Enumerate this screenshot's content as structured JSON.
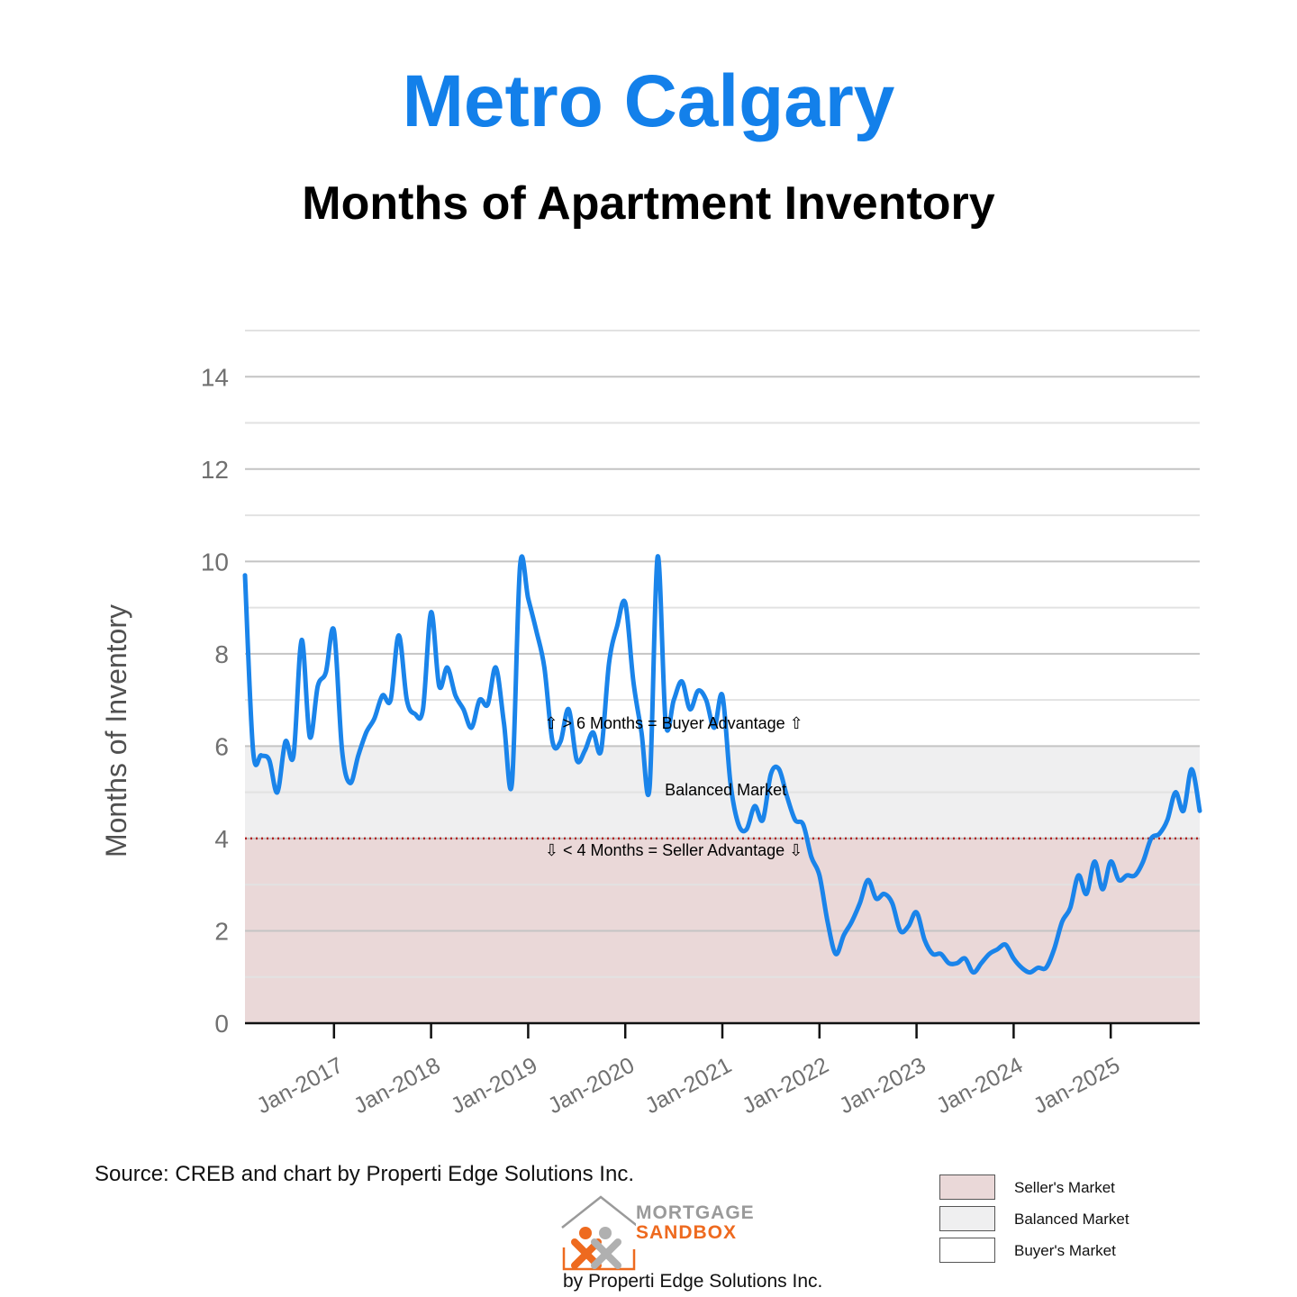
{
  "header": {
    "title": "Metro Calgary",
    "subtitle": "Months of Apartment Inventory"
  },
  "footer": {
    "source": "Source: CREB and chart by Properti Edge Solutions Inc.",
    "logo_line1": "MORTGAGE",
    "logo_line2": "SANDBOX",
    "logo_by": "by Properti Edge Solutions Inc."
  },
  "legend": [
    {
      "label": "Seller's Market",
      "color": "#ead8d8"
    },
    {
      "label": "Balanced Market",
      "color": "#efeff0"
    },
    {
      "label": "Buyer's Market",
      "color": "#ffffff"
    }
  ],
  "colors": {
    "line": "#1a84ea",
    "title": "#1380ea",
    "seller_zone": "#ead8d8",
    "balanced_zone": "#efeff0",
    "threshold_line": "#b22222"
  },
  "chart_data": {
    "type": "line",
    "title": "Months of Apartment Inventory",
    "xlabel": "",
    "ylabel": "Months of Inventory",
    "ylim": [
      0,
      15
    ],
    "yticks": [
      0,
      2,
      4,
      6,
      8,
      10,
      12,
      14
    ],
    "xlim": [
      "2016-02",
      "2025-12"
    ],
    "xticks": [
      {
        "label": "Jan-2017",
        "date": "2017-01"
      },
      {
        "label": "Jan-2018",
        "date": "2018-01"
      },
      {
        "label": "Jan-2019",
        "date": "2019-01"
      },
      {
        "label": "Jan-2020",
        "date": "2020-01"
      },
      {
        "label": "Jan-2021",
        "date": "2021-01"
      },
      {
        "label": "Jan-2022",
        "date": "2022-01"
      },
      {
        "label": "Jan-2023",
        "date": "2023-01"
      },
      {
        "label": "Jan-2024",
        "date": "2024-01"
      },
      {
        "label": "Jan-2025",
        "date": "2025-01"
      }
    ],
    "grid": true,
    "bands": [
      {
        "name": "Seller's Market",
        "from": 0,
        "to": 4
      },
      {
        "name": "Balanced Market",
        "from": 4,
        "to": 6
      }
    ],
    "threshold": 4,
    "annotations": [
      {
        "text": "⇧ > 6 Months = Buyer Advantage ⇧",
        "x": "2020-07",
        "y": 6.5
      },
      {
        "text": "Balanced Market",
        "x": "2020-09",
        "y": 5.05
      },
      {
        "text": "⇩ < 4 Months = Seller Advantage ⇩",
        "x": "2020-07",
        "y": 3.75
      }
    ],
    "series": [
      {
        "x": [
          "2016-02",
          "2016-03",
          "2016-04",
          "2016-05",
          "2016-06",
          "2016-07",
          "2016-08",
          "2016-09",
          "2016-10",
          "2016-11",
          "2016-12",
          "2017-01",
          "2017-02",
          "2017-03",
          "2017-04",
          "2017-05",
          "2017-06",
          "2017-07",
          "2017-08",
          "2017-09",
          "2017-10",
          "2017-11",
          "2017-12",
          "2018-01",
          "2018-02",
          "2018-03",
          "2018-04",
          "2018-05",
          "2018-06",
          "2018-07",
          "2018-08",
          "2018-09",
          "2018-10",
          "2018-11",
          "2018-12",
          "2019-01",
          "2019-02",
          "2019-03",
          "2019-04",
          "2019-05",
          "2019-06",
          "2019-07",
          "2019-08",
          "2019-09",
          "2019-10",
          "2019-11",
          "2019-12",
          "2020-01",
          "2020-02",
          "2020-03",
          "2020-04",
          "2020-05",
          "2020-06",
          "2020-07",
          "2020-08",
          "2020-09",
          "2020-10",
          "2020-11",
          "2020-12",
          "2021-01",
          "2021-02",
          "2021-03",
          "2021-04",
          "2021-05",
          "2021-06",
          "2021-07",
          "2021-08",
          "2021-09",
          "2021-10",
          "2021-11",
          "2021-12",
          "2022-01",
          "2022-02",
          "2022-03",
          "2022-04",
          "2022-05",
          "2022-06",
          "2022-07",
          "2022-08",
          "2022-09",
          "2022-10",
          "2022-11",
          "2022-12",
          "2023-01",
          "2023-02",
          "2023-03",
          "2023-04",
          "2023-05",
          "2023-06",
          "2023-07",
          "2023-08",
          "2023-09",
          "2023-10",
          "2023-11",
          "2023-12",
          "2024-01",
          "2024-02",
          "2024-03",
          "2024-04",
          "2024-05",
          "2024-06",
          "2024-07",
          "2024-08",
          "2024-09",
          "2024-10",
          "2024-11",
          "2024-12",
          "2025-01",
          "2025-02",
          "2025-03",
          "2025-04",
          "2025-05",
          "2025-06",
          "2025-07",
          "2025-08",
          "2025-09",
          "2025-10",
          "2025-11",
          "2025-12"
        ],
        "y": [
          9.7,
          5.9,
          5.8,
          5.7,
          5.0,
          6.1,
          5.8,
          8.3,
          6.2,
          7.3,
          7.6,
          8.5,
          5.9,
          5.2,
          5.8,
          6.3,
          6.6,
          7.1,
          7.0,
          8.4,
          7.0,
          6.7,
          6.8,
          8.9,
          7.3,
          7.7,
          7.1,
          6.8,
          6.4,
          7.0,
          6.9,
          7.7,
          6.5,
          5.2,
          9.9,
          9.2,
          8.5,
          7.7,
          6.1,
          6.1,
          6.8,
          5.7,
          5.9,
          6.3,
          5.9,
          7.8,
          8.6,
          9.1,
          7.4,
          6.3,
          5.1,
          10.1,
          6.5,
          7.0,
          7.4,
          6.8,
          7.2,
          7.0,
          6.4,
          7.1,
          5.2,
          4.3,
          4.2,
          4.7,
          4.4,
          5.4,
          5.5,
          4.9,
          4.4,
          4.3,
          3.6,
          3.2,
          2.2,
          1.5,
          1.9,
          2.2,
          2.6,
          3.1,
          2.7,
          2.8,
          2.6,
          2.0,
          2.1,
          2.4,
          1.8,
          1.5,
          1.5,
          1.3,
          1.3,
          1.4,
          1.1,
          1.3,
          1.5,
          1.6,
          1.7,
          1.4,
          1.2,
          1.1,
          1.2,
          1.2,
          1.6,
          2.2,
          2.5,
          3.2,
          2.8,
          3.5,
          2.9,
          3.5,
          3.1,
          3.2,
          3.2,
          3.5,
          4.0,
          4.1,
          4.4,
          5.0,
          4.6,
          5.5,
          4.6
        ]
      }
    ]
  }
}
